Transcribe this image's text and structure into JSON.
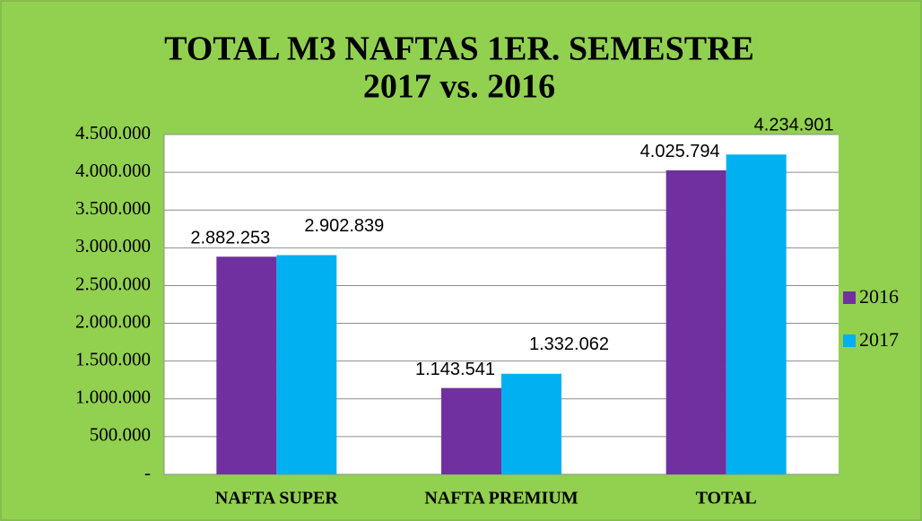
{
  "chart_data": {
    "type": "bar",
    "title": "TOTAL M3 NAFTAS  1ER. SEMESTRE",
    "subtitle": "2017  vs. 2016",
    "categories": [
      "NAFTA SUPER",
      "NAFTA PREMIUM",
      "TOTAL"
    ],
    "series": [
      {
        "name": "2016",
        "color": "#7030a0",
        "values": [
          2882253,
          1143541,
          4025794
        ],
        "value_labels": [
          "2.882.253",
          "1.143.541",
          "4.025.794"
        ]
      },
      {
        "name": "2017",
        "color": "#00b0f0",
        "values": [
          2902839,
          1332062,
          4234901
        ],
        "value_labels": [
          "2.902.839",
          "1.332.062",
          "4.234.901"
        ]
      }
    ],
    "ylim": [
      0,
      4500000
    ],
    "yticks": [
      {
        "value": 0,
        "label": "-"
      },
      {
        "value": 500000,
        "label": "500.000"
      },
      {
        "value": 1000000,
        "label": "1.000.000"
      },
      {
        "value": 1500000,
        "label": "1.500.000"
      },
      {
        "value": 2000000,
        "label": "2.000.000"
      },
      {
        "value": 2500000,
        "label": "2.500.000"
      },
      {
        "value": 3000000,
        "label": "3.000.000"
      },
      {
        "value": 3500000,
        "label": "3.500.000"
      },
      {
        "value": 4000000,
        "label": "4.000.000"
      },
      {
        "value": 4500000,
        "label": "4.500.000"
      }
    ],
    "grid": true,
    "legend": "right"
  }
}
